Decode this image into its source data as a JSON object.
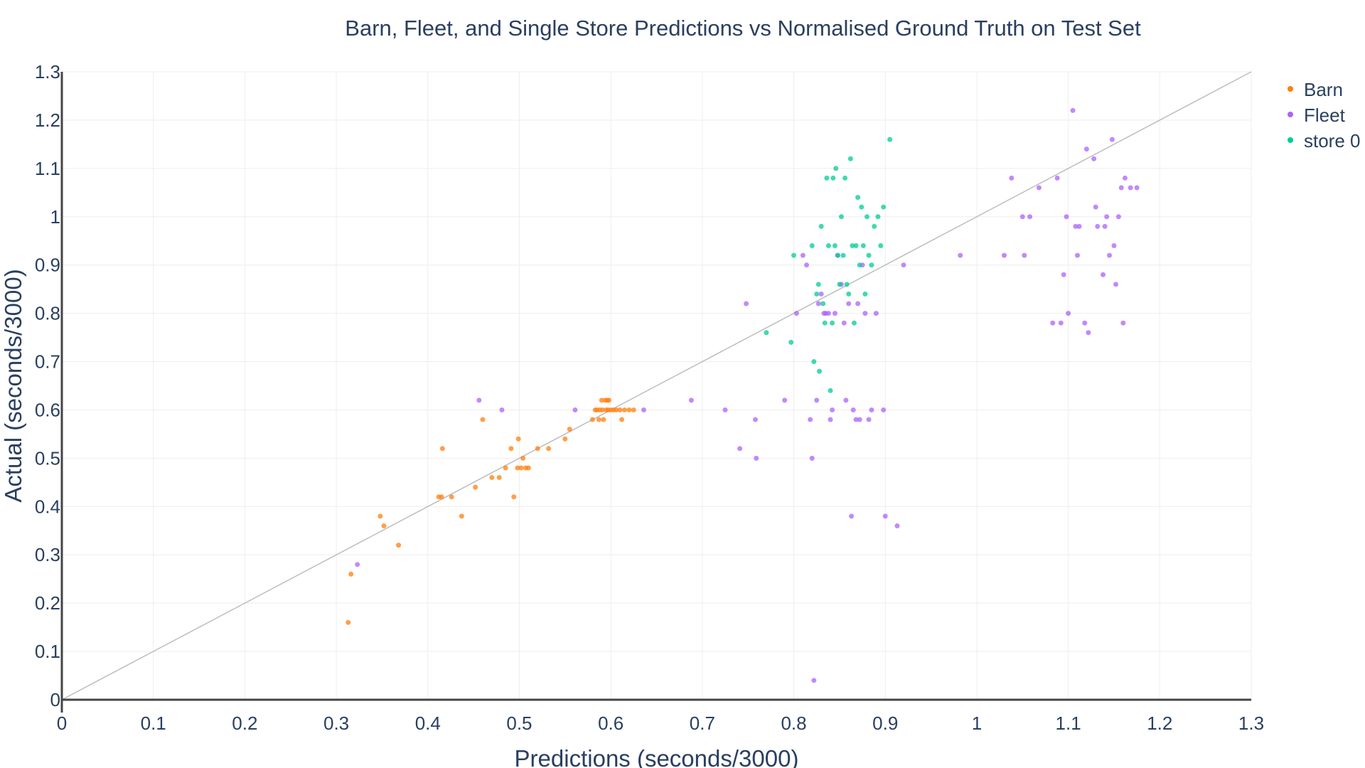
{
  "chart_data": {
    "type": "scatter",
    "title": "Barn, Fleet, and Single Store Predictions vs Normalised Ground Truth on Test Set",
    "xlabel": "Predictions (seconds/3000)",
    "ylabel": "Actual (seconds/3000)",
    "xlim": [
      0,
      1.3
    ],
    "ylim": [
      0,
      1.3
    ],
    "xticks": [
      "0",
      "0.1",
      "0.2",
      "0.3",
      "0.4",
      "0.5",
      "0.6",
      "0.7",
      "0.8",
      "0.9",
      "1",
      "1.1",
      "1.2",
      "1.3"
    ],
    "yticks": [
      "0",
      "0.1",
      "0.2",
      "0.3",
      "0.4",
      "0.5",
      "0.6",
      "0.7",
      "0.8",
      "0.9",
      "1",
      "1.1",
      "1.2",
      "1.3"
    ],
    "grid": true,
    "legend_position": "top-right",
    "reference_line": {
      "x": [
        0,
        1.3
      ],
      "y": [
        0,
        1.3
      ],
      "color": "#bdbdbd"
    },
    "series": [
      {
        "name": "Barn",
        "color": "#ff7f0e",
        "x": [
          0.313,
          0.316,
          0.348,
          0.352,
          0.368,
          0.412,
          0.415,
          0.416,
          0.426,
          0.437,
          0.452,
          0.46,
          0.47,
          0.478,
          0.485,
          0.491,
          0.494,
          0.498,
          0.499,
          0.502,
          0.504,
          0.507,
          0.51,
          0.52,
          0.532,
          0.55,
          0.555,
          0.58,
          0.583,
          0.585,
          0.587,
          0.588,
          0.59,
          0.591,
          0.592,
          0.594,
          0.595,
          0.596,
          0.597,
          0.598,
          0.6,
          0.603,
          0.606,
          0.61,
          0.612,
          0.615,
          0.62,
          0.625
        ],
        "y": [
          0.16,
          0.26,
          0.38,
          0.36,
          0.32,
          0.42,
          0.42,
          0.52,
          0.42,
          0.38,
          0.44,
          0.58,
          0.46,
          0.46,
          0.48,
          0.52,
          0.42,
          0.48,
          0.54,
          0.48,
          0.5,
          0.48,
          0.48,
          0.52,
          0.52,
          0.54,
          0.56,
          0.58,
          0.6,
          0.6,
          0.58,
          0.6,
          0.62,
          0.6,
          0.58,
          0.62,
          0.6,
          0.62,
          0.6,
          0.62,
          0.6,
          0.6,
          0.6,
          0.6,
          0.58,
          0.6,
          0.6,
          0.6
        ]
      },
      {
        "name": "Fleet",
        "color": "#ab63fa",
        "x": [
          0.323,
          0.456,
          0.481,
          0.561,
          0.636,
          0.688,
          0.725,
          0.741,
          0.748,
          0.758,
          0.759,
          0.79,
          0.803,
          0.81,
          0.814,
          0.818,
          0.82,
          0.822,
          0.825,
          0.827,
          0.83,
          0.833,
          0.835,
          0.838,
          0.84,
          0.842,
          0.845,
          0.848,
          0.852,
          0.855,
          0.857,
          0.86,
          0.863,
          0.865,
          0.868,
          0.87,
          0.872,
          0.875,
          0.878,
          0.882,
          0.885,
          0.89,
          0.898,
          0.9,
          0.913,
          0.92,
          0.982,
          1.03,
          1.038,
          1.05,
          1.052,
          1.058,
          1.068,
          1.083,
          1.088,
          1.092,
          1.095,
          1.098,
          1.1,
          1.105,
          1.108,
          1.11,
          1.112,
          1.118,
          1.12,
          1.122,
          1.128,
          1.13,
          1.132,
          1.138,
          1.14,
          1.142,
          1.145,
          1.148,
          1.15,
          1.152,
          1.155,
          1.158,
          1.16,
          1.162,
          1.168,
          1.175
        ],
        "y": [
          0.28,
          0.62,
          0.6,
          0.6,
          0.6,
          0.62,
          0.6,
          0.52,
          0.82,
          0.58,
          0.5,
          0.62,
          0.8,
          0.92,
          0.9,
          0.58,
          0.5,
          0.04,
          0.62,
          0.82,
          0.84,
          0.8,
          0.8,
          0.8,
          0.58,
          0.6,
          0.8,
          0.92,
          0.86,
          0.78,
          0.62,
          0.82,
          0.38,
          0.6,
          0.58,
          0.82,
          0.58,
          0.9,
          0.8,
          0.58,
          0.6,
          0.8,
          0.6,
          0.38,
          0.36,
          0.9,
          0.92,
          0.92,
          1.08,
          1.0,
          0.92,
          1.0,
          1.06,
          0.78,
          1.08,
          0.78,
          0.88,
          1.0,
          0.8,
          1.22,
          0.98,
          0.92,
          0.98,
          0.78,
          1.14,
          0.76,
          1.12,
          1.02,
          0.98,
          0.88,
          0.98,
          1.0,
          0.92,
          1.16,
          0.94,
          0.86,
          1.0,
          1.06,
          0.78,
          1.08,
          1.06,
          1.06
        ]
      },
      {
        "name": "store 0",
        "color": "#00cc96",
        "x": [
          0.77,
          0.797,
          0.8,
          0.82,
          0.822,
          0.825,
          0.827,
          0.828,
          0.83,
          0.832,
          0.834,
          0.836,
          0.838,
          0.84,
          0.842,
          0.843,
          0.845,
          0.846,
          0.848,
          0.85,
          0.852,
          0.854,
          0.856,
          0.858,
          0.86,
          0.862,
          0.864,
          0.866,
          0.868,
          0.87,
          0.872,
          0.874,
          0.876,
          0.878,
          0.88,
          0.882,
          0.885,
          0.888,
          0.892,
          0.895,
          0.898,
          0.905
        ],
        "y": [
          0.76,
          0.74,
          0.92,
          0.94,
          0.7,
          0.84,
          0.86,
          0.68,
          0.98,
          0.82,
          0.78,
          1.08,
          0.94,
          0.64,
          0.78,
          1.08,
          0.94,
          1.1,
          0.92,
          0.86,
          1.0,
          0.92,
          1.08,
          0.86,
          0.84,
          1.12,
          0.94,
          0.78,
          0.94,
          1.04,
          0.9,
          1.02,
          0.94,
          0.84,
          1.0,
          0.92,
          0.9,
          0.98,
          1.0,
          0.94,
          1.02,
          1.16
        ]
      }
    ]
  }
}
